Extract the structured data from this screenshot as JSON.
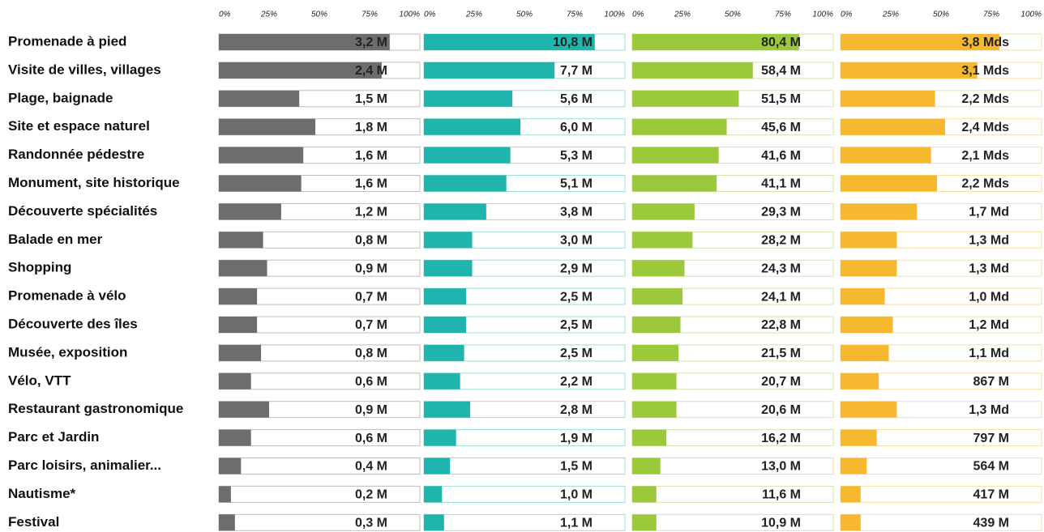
{
  "chart_data": {
    "type": "bar",
    "orientation": "horizontal",
    "categories": [
      "Promenade à pied",
      "Visite de villes, villages",
      "Plage, baignade",
      "Site et espace naturel",
      "Randonnée pédestre",
      "Monument, site historique",
      "Découverte spécialités",
      "Balade en mer",
      "Shopping",
      "Promenade à vélo",
      "Découverte des îles",
      "Musée, exposition",
      "Vélo, VTT",
      "Restaurant gastronomique",
      "Parc et Jardin",
      "Parc loisirs, animalier...",
      "Nautisme*",
      "Festival"
    ],
    "xlim": [
      0,
      100
    ],
    "xticks": [
      {
        "value": 0,
        "label": "0%"
      },
      {
        "value": 25,
        "label": "25%"
      },
      {
        "value": 50,
        "label": "50%"
      },
      {
        "value": 75,
        "label": "75%"
      },
      {
        "value": 100,
        "label": "100%"
      }
    ],
    "series": [
      {
        "color": "#6d6d6d",
        "values": [
          85,
          81,
          40,
          48,
          42,
          41,
          31,
          22,
          24,
          19,
          19,
          21,
          16,
          25,
          16,
          11,
          6,
          8
        ],
        "labels": [
          "3,2 M",
          "2,4 M",
          "1,5 M",
          "1,8 M",
          "1,6 M",
          "1,6 M",
          "1,2 M",
          "0,8 M",
          "0,9 M",
          "0,7 M",
          "0,7 M",
          "0,8 M",
          "0,6 M",
          "0,9 M",
          "0,6 M",
          "0,4 M",
          "0,2 M",
          "0,3 M"
        ]
      },
      {
        "color": "#1fb5ac",
        "values": [
          85,
          65,
          44,
          48,
          43,
          41,
          31,
          24,
          24,
          21,
          21,
          20,
          18,
          23,
          16,
          13,
          9,
          10
        ],
        "labels": [
          "10,8 M",
          "7,7 M",
          "5,6 M",
          "6,0 M",
          "5,3 M",
          "5,1 M",
          "3,8 M",
          "3,0 M",
          "2,9 M",
          "2,5 M",
          "2,5 M",
          "2,5 M",
          "2,2 M",
          "2,8 M",
          "1,9 M",
          "1,5 M",
          "1,0 M",
          "1,1 M"
        ]
      },
      {
        "color": "#9cc83c",
        "values": [
          83,
          60,
          53,
          47,
          43,
          42,
          31,
          30,
          26,
          25,
          24,
          23,
          22,
          22,
          17,
          14,
          12,
          12
        ],
        "labels": [
          "80,4 M",
          "58,4 M",
          "51,5 M",
          "45,6 M",
          "41,6 M",
          "41,1 M",
          "29,3 M",
          "28,2 M",
          "24,3 M",
          "24,1 M",
          "22,8 M",
          "21,5 M",
          "20,7 M",
          "20,6 M",
          "16,2 M",
          "13,0 M",
          "11,6 M",
          "10,9 M"
        ]
      },
      {
        "color": "#f5b82e",
        "values": [
          79,
          68,
          47,
          52,
          45,
          48,
          38,
          28,
          28,
          22,
          26,
          24,
          19,
          28,
          18,
          13,
          10,
          10
        ],
        "labels": [
          "3,8 Mds",
          "3,1 Mds",
          "2,2 Mds",
          "2,4 Mds",
          "2,1 Mds",
          "2,2 Mds",
          "1,7 Md",
          "1,3 Md",
          "1,3 Md",
          "1,0 Md",
          "1,2 Md",
          "1,1 Md",
          "867 M",
          "1,3 Md",
          "797 M",
          "564 M",
          "417 M",
          "439 M"
        ]
      }
    ]
  }
}
